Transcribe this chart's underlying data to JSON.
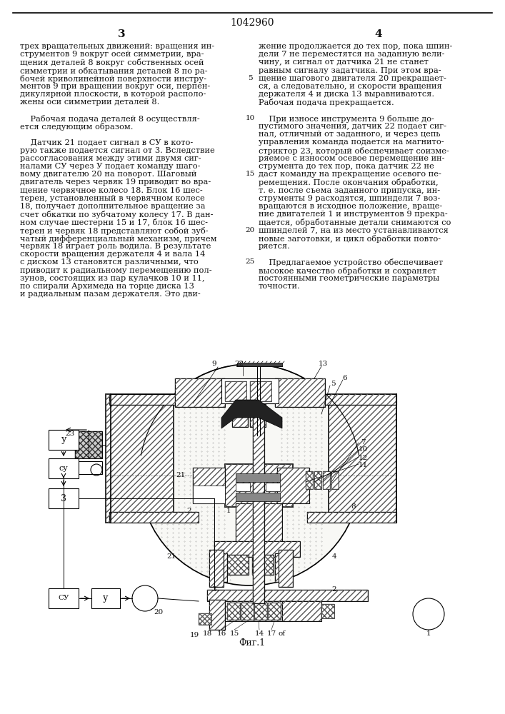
{
  "title": "1042960",
  "col_left_num": "3",
  "col_right_num": "4",
  "left_column_text": [
    "трех вращательных движений: вращения ин-",
    "струментов 9 вокруг осей симметрии, вра-",
    "щения деталей 8 вокруг собственных осей",
    "симметрии и обкатывания деталей 8 по ра-",
    "бочей криволинейной поверхности инстру-",
    "ментов 9 при вращении вокруг оси, перпен-",
    "дикулярной плоскости, в которой располо-",
    "жены оси симметрии деталей 8.",
    "",
    "    Рабочая подача деталей 8 осуществля-",
    "ется следующим образом.",
    "",
    "    Датчик 21 подает сигнал в СУ в кото-",
    "рую также подается сигнал от 3. Вследствие",
    "рассогласования между этими двумя сиг-",
    "налами СУ через У подает команду шаго-",
    "вому двигателю 20 на поворот. Шаговый",
    "двигатель через червяк 19 приводит во вра-",
    "щение червячное колесо 18. Блок 16 шес-",
    "терен, установленный в червячном колесе",
    "18, получает дополнительное вращение за",
    "счет обкатки по зубчатому колесу 17. В дан-",
    "ном случае шестерни 15 и 17, блок 16 шес-",
    "терен и червяк 18 представляют собой зуб-",
    "чатый дифференциальный механизм, причем",
    "червяк 18 играет роль водила. В результате",
    "скорости вращения держателя 4 и вала 14",
    "с диском 13 становятся различными, что",
    "приводит к радиальному перемещению пол-",
    "зунов, состоящих из пар кулачков 10 и 11,",
    "по спирали Архимеда на торце диска 13",
    "и радиальным пазам держателя. Это дви-"
  ],
  "right_column_text": [
    "жение продолжается до тех пор, пока шпин-",
    "дели 7 не переместятся на заданную вели-",
    "чину, и сигнал от датчика 21 не станет",
    "равным сигналу задатчика. При этом вра-",
    "щение шагового двигателя 20 прекращает-",
    "ся, а следовательно, и скорости вращения",
    "держателя 4 и диска 13 выравниваются.",
    "Рабочая подача прекращается.",
    "",
    "    При износе инструмента 9 больше до-",
    "пустимого значения, датчик 22 подает сиг-",
    "нал, отличный от заданного, и через цепь",
    "управления команда подается на магнито-",
    "стриктор 23, который обеспечивает соизме-",
    "ряемое с износом осевое перемещение ин-",
    "струмента до тех пор, пока датчик 22 не",
    "даст команду на прекращение осевого пе-",
    "ремещения. После окончания обработки,",
    "т. е. после съема заданного припуска, ин-",
    "струменты 9 расходятся, шпиндели 7 воз-",
    "вращаются в исходное положение, враще-",
    "ние двигателей 1 и инструментов 9 прекра-",
    "щается, обработанные детали снимаются со",
    "шпинделей 7, на из место устанавливаются",
    "новые заготовки, и цикл обработки повто-",
    "ряется.",
    "",
    "    Предлагаемое устройство обеспечивает",
    "высокое качество обработки и сохраняет",
    "постоянными геометрические параметры",
    "точности."
  ],
  "fig_caption": "Фиг.1",
  "bg_color": "#ffffff",
  "text_color": "#111111",
  "font_size_body": 8.2,
  "font_size_title": 10,
  "font_size_colnum": 11
}
